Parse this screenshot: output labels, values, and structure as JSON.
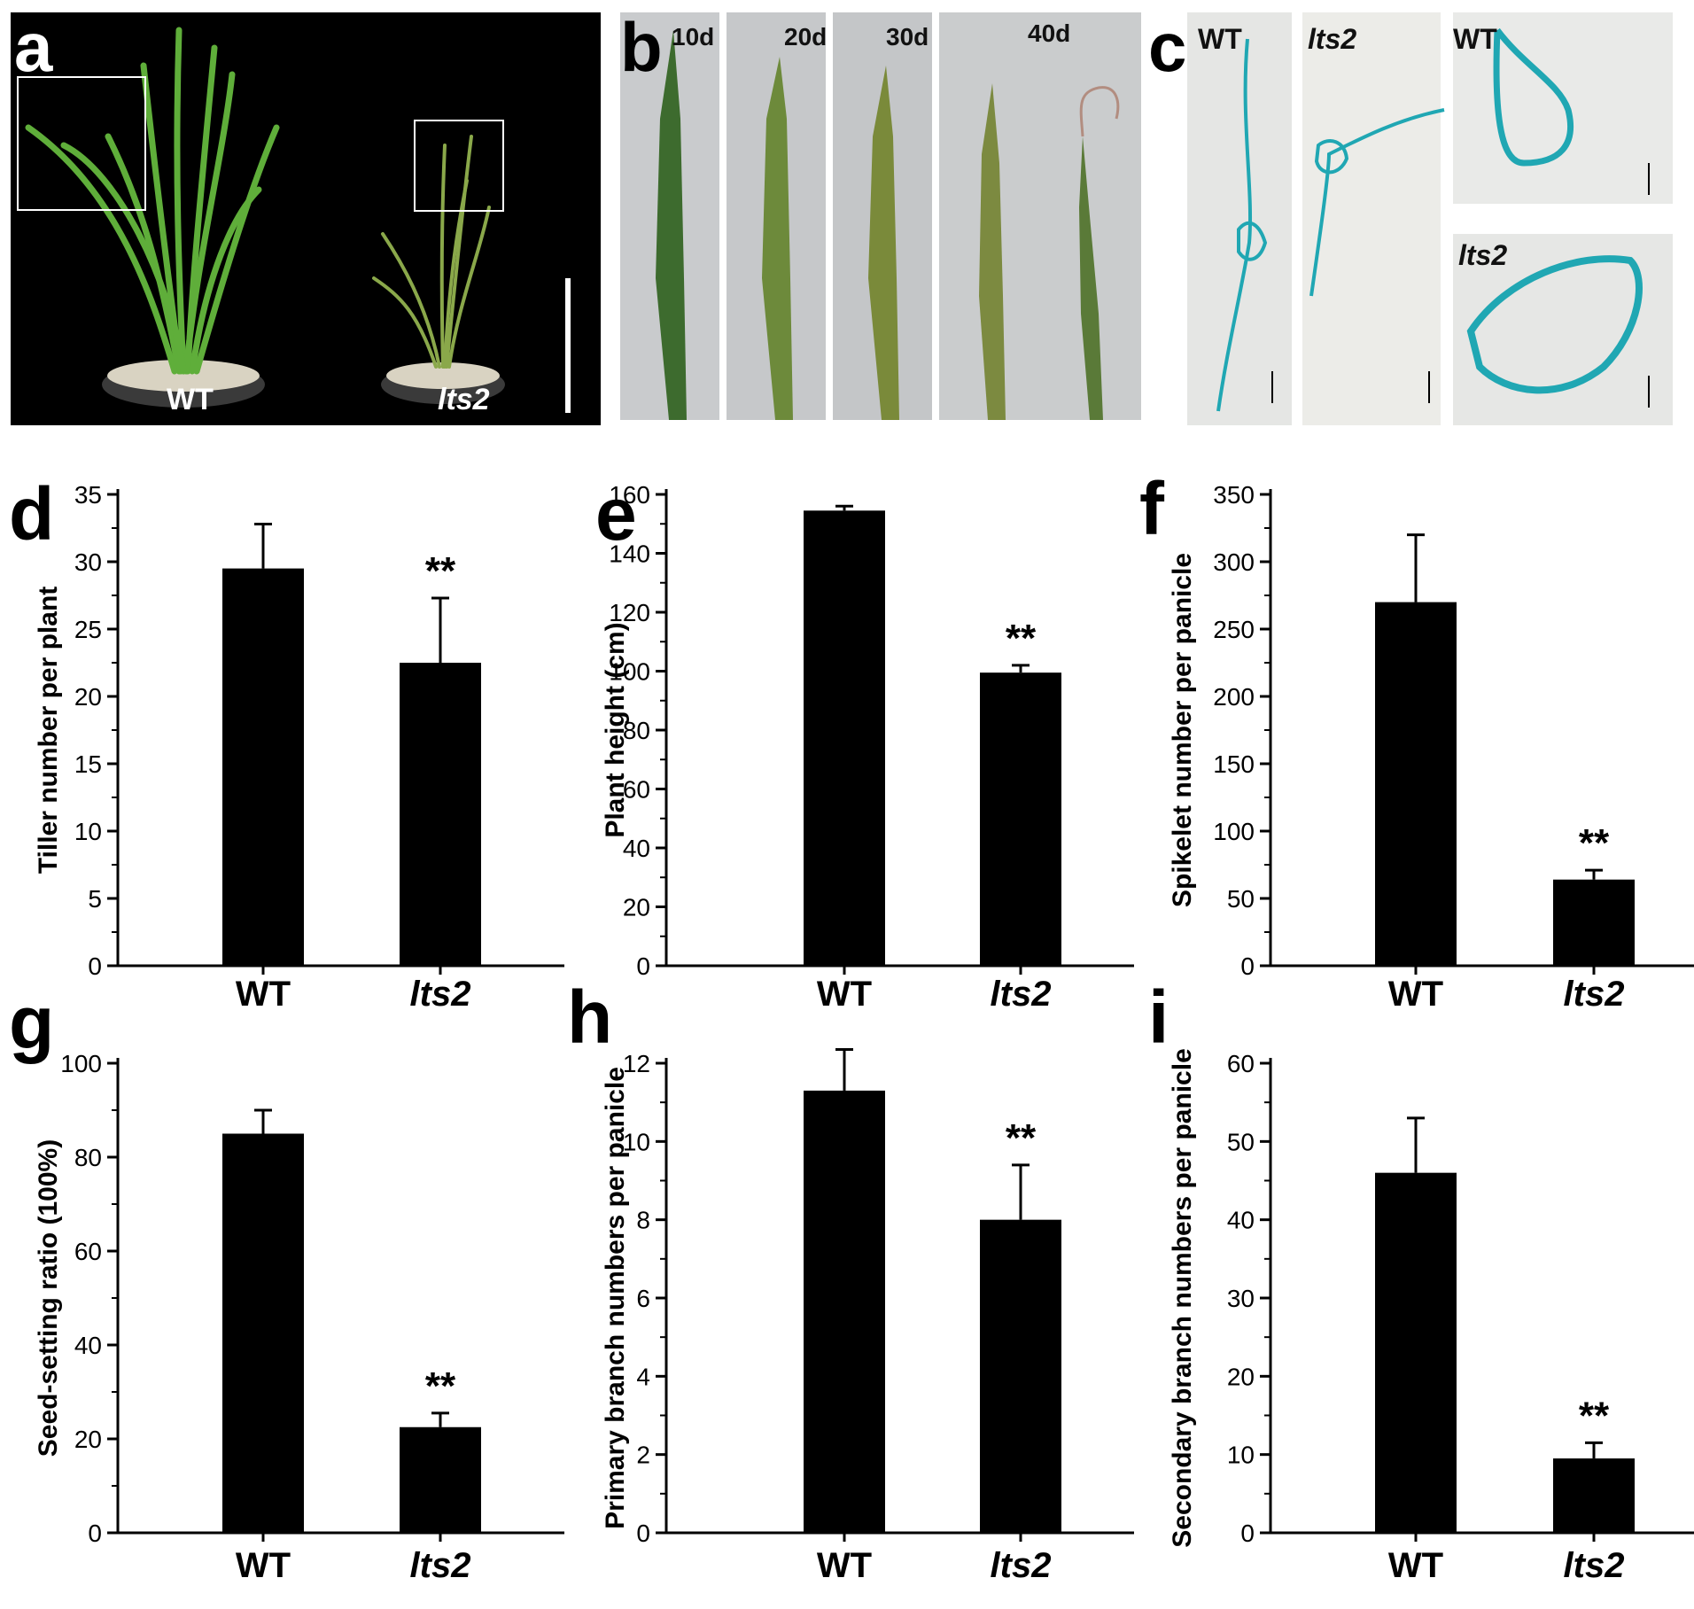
{
  "panel_labels": [
    "a",
    "b",
    "c",
    "d",
    "e",
    "f",
    "g",
    "h",
    "i"
  ],
  "photo_a": {
    "wt": "WT",
    "mutant": "lts2"
  },
  "photo_b": {
    "days": [
      "10d",
      "20d",
      "30d",
      "40d"
    ]
  },
  "photo_c": {
    "wt": "WT",
    "mutant": "lts2"
  },
  "colors": {
    "bar": "#000000",
    "photo_bg": "#000000",
    "leaf_bg": "#c9cbcd",
    "stain": "#20a7b3"
  },
  "chart_data": [
    {
      "type": "bar",
      "title": "",
      "xlabel": "",
      "ylabel": "Tiller number per plant",
      "categories": [
        "WT",
        "lts2"
      ],
      "values": [
        29.5,
        22.5
      ],
      "errors": [
        3.3,
        4.8
      ],
      "ylim": [
        0,
        35
      ],
      "yticks": [
        "0",
        "5",
        "10",
        "15",
        "20",
        "25",
        "30",
        "35"
      ],
      "annotation": "**",
      "grid": false
    },
    {
      "type": "bar",
      "title": "",
      "xlabel": "",
      "ylabel": "Plant height (cm)",
      "categories": [
        "WT",
        "lts2"
      ],
      "values": [
        154.5,
        99.5
      ],
      "errors": [
        1.5,
        2.5
      ],
      "ylim": [
        0,
        160
      ],
      "yticks": [
        "0",
        "20",
        "40",
        "60",
        "80",
        "100",
        "120",
        "140",
        "160"
      ],
      "annotation": "**",
      "grid": false
    },
    {
      "type": "bar",
      "title": "",
      "xlabel": "",
      "ylabel": "Spikelet number per panicle",
      "categories": [
        "WT",
        "lts2"
      ],
      "values": [
        270,
        64
      ],
      "errors": [
        50,
        7
      ],
      "ylim": [
        0,
        350
      ],
      "yticks": [
        "0",
        "50",
        "100",
        "150",
        "200",
        "250",
        "300",
        "350"
      ],
      "annotation": "**",
      "grid": false
    },
    {
      "type": "bar",
      "title": "",
      "xlabel": "",
      "ylabel": "Seed-setting ratio (100%)",
      "categories": [
        "WT",
        "lts2"
      ],
      "values": [
        85,
        22.5
      ],
      "errors": [
        5,
        3
      ],
      "ylim": [
        0,
        100
      ],
      "yticks": [
        "0",
        "20",
        "40",
        "60",
        "80",
        "100"
      ],
      "annotation": "**",
      "grid": false
    },
    {
      "type": "bar",
      "title": "",
      "xlabel": "",
      "ylabel": "Primary branch numbers per panicle",
      "categories": [
        "WT",
        "lts2"
      ],
      "values": [
        11.3,
        8.0
      ],
      "errors": [
        1.05,
        1.4
      ],
      "ylim": [
        0,
        12
      ],
      "yticks": [
        "0",
        "2",
        "4",
        "6",
        "8",
        "10",
        "12"
      ],
      "annotation": "**",
      "grid": false
    },
    {
      "type": "bar",
      "title": "",
      "xlabel": "",
      "ylabel": "Secondary branch numbers per panicle",
      "categories": [
        "WT",
        "lts2"
      ],
      "values": [
        46,
        9.5
      ],
      "errors": [
        7,
        2
      ],
      "ylim": [
        0,
        60
      ],
      "yticks": [
        "0",
        "10",
        "20",
        "30",
        "40",
        "50",
        "60"
      ],
      "annotation": "**",
      "grid": false
    }
  ]
}
